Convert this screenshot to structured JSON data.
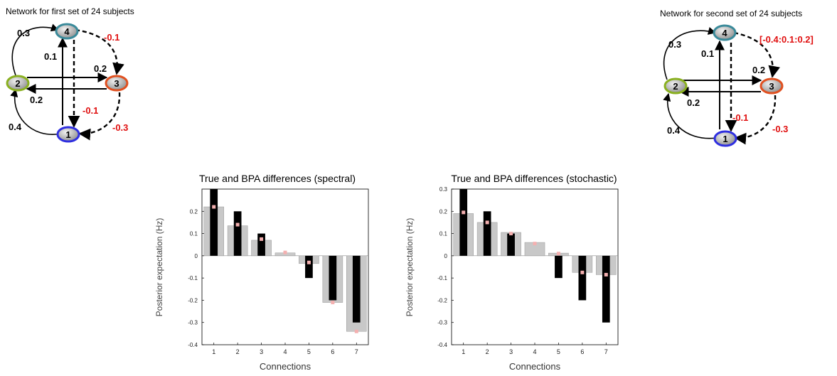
{
  "networks": [
    {
      "title": "Network for first set of 24 subjects",
      "nodes": [
        {
          "id": "1",
          "color": "#2f2fe0"
        },
        {
          "id": "2",
          "color": "#8ab020"
        },
        {
          "id": "3",
          "color": "#e05020"
        },
        {
          "id": "4",
          "color": "#3a8a9a"
        }
      ],
      "labels": {
        "outer_left_top": "0.3",
        "inner_left": "0.1",
        "top_right": "-0.1",
        "mid_right": "0.2",
        "mid_left": "0.2",
        "inner_bottom": "-0.1",
        "outer_left_bottom": "0.4",
        "bottom_right": "-0.3"
      }
    },
    {
      "title": "Network for second set of 24 subjects",
      "nodes": [
        {
          "id": "1",
          "color": "#2f2fe0"
        },
        {
          "id": "2",
          "color": "#8ab020"
        },
        {
          "id": "3",
          "color": "#e05020"
        },
        {
          "id": "4",
          "color": "#3a8a9a"
        }
      ],
      "labels": {
        "outer_left_top": "0.3",
        "inner_left": "0.1",
        "top_right": "[-0.4:0.1:0.2]",
        "mid_right": "0.2",
        "mid_left": "0.2",
        "inner_bottom": "-0.1",
        "outer_left_bottom": "0.4",
        "bottom_right": "-0.3"
      }
    }
  ],
  "colors": {
    "negative_label": "#e01010",
    "gray_bar": "#c8c8c8",
    "black_bar": "#000000",
    "marker": "#f4b0b0"
  },
  "chart_data": [
    {
      "type": "bar",
      "title": "True and BPA differences (spectral)",
      "xlabel": "Connections",
      "ylabel": "Posterior expectation (Hz)",
      "categories": [
        "1",
        "2",
        "3",
        "4",
        "5",
        "6",
        "7"
      ],
      "ylim": [
        -0.4,
        0.3
      ],
      "yticks": [
        "-0.4",
        "-0.3",
        "-0.2",
        "-0.1",
        "0",
        "0.1",
        "0.2"
      ],
      "ytick_values": [
        -0.4,
        -0.3,
        -0.2,
        -0.1,
        0,
        0.1,
        0.2
      ],
      "series": [
        {
          "values": [
            0.22,
            0.135,
            0.07,
            0.013,
            -0.035,
            -0.21,
            -0.34
          ]
        },
        {
          "values": [
            0.3,
            0.2,
            0.1,
            0.0,
            -0.1,
            -0.2,
            -0.3
          ]
        },
        {
          "values": [
            0.22,
            0.14,
            0.075,
            0.015,
            -0.03,
            -0.21,
            -0.34
          ]
        }
      ]
    },
    {
      "type": "bar",
      "title": "True and BPA differences (stochastic)",
      "xlabel": "Connections",
      "ylabel": "Posterior expectation (Hz)",
      "categories": [
        "1",
        "2",
        "3",
        "4",
        "5",
        "6",
        "7"
      ],
      "ylim": [
        -0.4,
        0.3
      ],
      "yticks": [
        "-0.4",
        "-0.3",
        "-0.2",
        "-0.1",
        "0",
        "0.1",
        "0.2",
        "0.3"
      ],
      "ytick_values": [
        -0.4,
        -0.3,
        -0.2,
        -0.1,
        0,
        0.1,
        0.2,
        0.3
      ],
      "series": [
        {
          "values": [
            0.19,
            0.15,
            0.105,
            0.06,
            0.012,
            -0.075,
            -0.085
          ]
        },
        {
          "values": [
            0.3,
            0.2,
            0.1,
            0.0,
            -0.1,
            -0.2,
            -0.3
          ]
        },
        {
          "values": [
            0.195,
            0.15,
            0.1,
            0.055,
            0.01,
            -0.075,
            -0.085
          ]
        }
      ]
    }
  ]
}
